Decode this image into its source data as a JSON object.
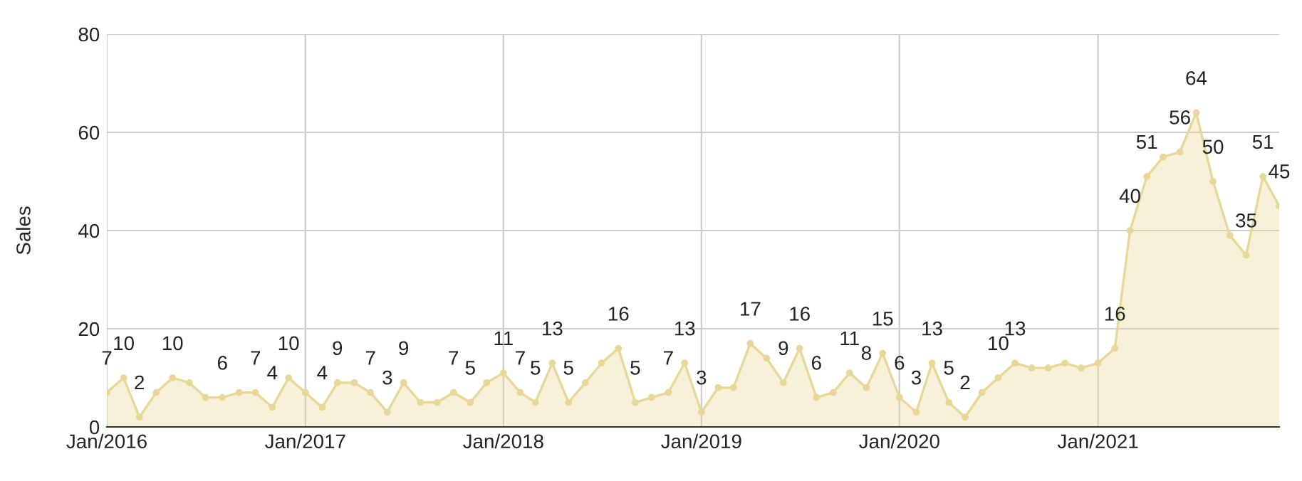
{
  "chart_data": {
    "type": "area",
    "ylabel": "Sales",
    "x": [
      "2016-01",
      "2016-02",
      "2016-03",
      "2016-04",
      "2016-05",
      "2016-06",
      "2016-07",
      "2016-08",
      "2016-09",
      "2016-10",
      "2016-11",
      "2016-12",
      "2017-01",
      "2017-02",
      "2017-03",
      "2017-04",
      "2017-05",
      "2017-06",
      "2017-07",
      "2017-08",
      "2017-09",
      "2017-10",
      "2017-11",
      "2017-12",
      "2018-01",
      "2018-02",
      "2018-03",
      "2018-04",
      "2018-05",
      "2018-06",
      "2018-07",
      "2018-08",
      "2018-09",
      "2018-10",
      "2018-11",
      "2018-12",
      "2019-01",
      "2019-02",
      "2019-03",
      "2019-04",
      "2019-05",
      "2019-06",
      "2019-07",
      "2019-08",
      "2019-09",
      "2019-10",
      "2019-11",
      "2019-12",
      "2020-01",
      "2020-02",
      "2020-03",
      "2020-04",
      "2020-05",
      "2020-06",
      "2020-07",
      "2020-08",
      "2020-09",
      "2020-10",
      "2020-11",
      "2020-12",
      "2021-01",
      "2021-02",
      "2021-03",
      "2021-04",
      "2021-05",
      "2021-06",
      "2021-07",
      "2021-08",
      "2021-09",
      "2021-10",
      "2021-11",
      "2021-12"
    ],
    "values": [
      7,
      10,
      2,
      7,
      10,
      9,
      6,
      6,
      7,
      7,
      4,
      10,
      7,
      4,
      9,
      9,
      7,
      3,
      9,
      5,
      5,
      7,
      5,
      9,
      11,
      7,
      5,
      13,
      5,
      9,
      13,
      16,
      5,
      6,
      7,
      13,
      3,
      8,
      8,
      17,
      14,
      9,
      16,
      6,
      7,
      11,
      8,
      15,
      6,
      3,
      13,
      5,
      2,
      7,
      10,
      13,
      12,
      12,
      13,
      12,
      13,
      16,
      40,
      51,
      55,
      56,
      64,
      50,
      39,
      35,
      51,
      45
    ],
    "value_labels": [
      "7",
      "10",
      "2",
      null,
      "10",
      null,
      null,
      "6",
      null,
      "7",
      "4",
      "10",
      null,
      "4",
      "9",
      null,
      "7",
      "3",
      "9",
      null,
      null,
      "7",
      "5",
      null,
      "11",
      "7",
      "5",
      "13",
      "5",
      null,
      null,
      "16",
      "5",
      null,
      "7",
      "13",
      "3",
      null,
      null,
      "17",
      null,
      "9",
      "16",
      "6",
      null,
      "11",
      "8",
      "15",
      "6",
      "3",
      "13",
      "5",
      "2",
      null,
      "10",
      "13",
      null,
      null,
      null,
      null,
      null,
      "16",
      "40",
      "51",
      null,
      "56",
      "64",
      "50",
      null,
      "35",
      "51",
      "45"
    ],
    "color": "#e8d796",
    "xlim": [
      "2016-01",
      "2021-12"
    ],
    "xticks": [
      {
        "value": "2016-01",
        "label": "Jan/2016"
      },
      {
        "value": "2017-01",
        "label": "Jan/2017"
      },
      {
        "value": "2018-01",
        "label": "Jan/2018"
      },
      {
        "value": "2019-01",
        "label": "Jan/2019"
      },
      {
        "value": "2020-01",
        "label": "Jan/2020"
      },
      {
        "value": "2021-01",
        "label": "Jan/2021"
      }
    ],
    "ylim": [
      0,
      80
    ],
    "yticks": [
      0,
      20,
      40,
      60,
      80
    ],
    "grid": true,
    "marker": "circle",
    "legend": false
  }
}
